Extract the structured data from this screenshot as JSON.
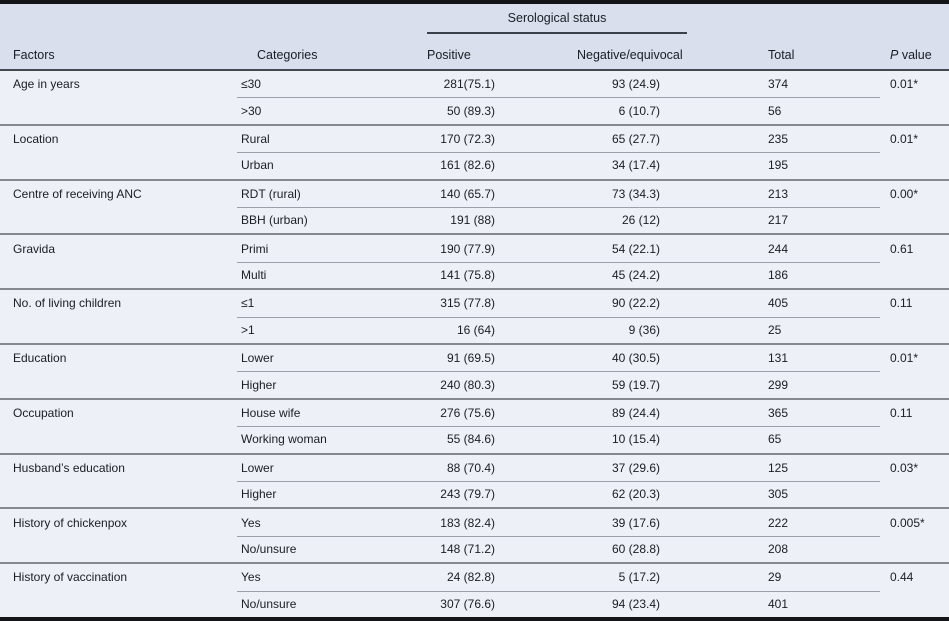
{
  "colors": {
    "pageBg": "#edf0f6",
    "headerBg": "#d9dfec",
    "barColor": "#131417",
    "headerLine": "#44484f",
    "spannerLine": "#3c4048",
    "groupLine": "#84888f",
    "rowLine": "#9aa0aa",
    "textColor": "#1a1d24"
  },
  "table": {
    "spanner": "Serological status",
    "columns": {
      "factors": "Factors",
      "categories": "Categories",
      "positive": "Positive",
      "negative": "Negative/equivocal",
      "total": "Total",
      "p": "P value"
    },
    "groups": [
      {
        "factor": "Age in years",
        "p": "0.01*",
        "rows": [
          {
            "category": "≤30",
            "positive": "281(75.1)",
            "negative": "93 (24.9)",
            "total": "374"
          },
          {
            "category": ">30",
            "positive": "50 (89.3)",
            "negative": "6 (10.7)",
            "total": "56"
          }
        ]
      },
      {
        "factor": "Location",
        "p": "0.01*",
        "rows": [
          {
            "category": "Rural",
            "positive": "170 (72.3)",
            "negative": "65 (27.7)",
            "total": "235"
          },
          {
            "category": "Urban",
            "positive": "161 (82.6)",
            "negative": "34 (17.4)",
            "total": "195"
          }
        ]
      },
      {
        "factor": "Centre of receiving ANC",
        "p": "0.00*",
        "rows": [
          {
            "category": "RDT (rural)",
            "positive": "140 (65.7)",
            "negative": "73 (34.3)",
            "total": "213"
          },
          {
            "category": "BBH (urban)",
            "positive": "191 (88)",
            "negative": "26 (12)",
            "total": "217"
          }
        ]
      },
      {
        "factor": "Gravida",
        "p": "0.61",
        "rows": [
          {
            "category": "Primi",
            "positive": "190 (77.9)",
            "negative": "54 (22.1)",
            "total": "244"
          },
          {
            "category": "Multi",
            "positive": "141 (75.8)",
            "negative": "45 (24.2)",
            "total": "186"
          }
        ]
      },
      {
        "factor": "No. of living children",
        "p": "0.11",
        "rows": [
          {
            "category": "≤1",
            "positive": "315 (77.8)",
            "negative": "90 (22.2)",
            "total": "405"
          },
          {
            "category": ">1",
            "positive": "16 (64)",
            "negative": "9 (36)",
            "total": "25"
          }
        ]
      },
      {
        "factor": "Education",
        "p": "0.01*",
        "rows": [
          {
            "category": "Lower",
            "positive": "91 (69.5)",
            "negative": "40 (30.5)",
            "total": "131"
          },
          {
            "category": "Higher",
            "positive": "240 (80.3)",
            "negative": "59 (19.7)",
            "total": "299"
          }
        ]
      },
      {
        "factor": "Occupation",
        "p": "0.11",
        "rows": [
          {
            "category": "House wife",
            "positive": "276 (75.6)",
            "negative": "89 (24.4)",
            "total": "365"
          },
          {
            "category": "Working woman",
            "positive": "55 (84.6)",
            "negative": "10 (15.4)",
            "total": "65"
          }
        ]
      },
      {
        "factor": "Husband’s education",
        "p": "0.03*",
        "rows": [
          {
            "category": "Lower",
            "positive": "88 (70.4)",
            "negative": "37 (29.6)",
            "total": "125"
          },
          {
            "category": "Higher",
            "positive": "243 (79.7)",
            "negative": "62 (20.3)",
            "total": "305"
          }
        ]
      },
      {
        "factor": "History of chickenpox",
        "p": "0.005*",
        "rows": [
          {
            "category": "Yes",
            "positive": "183 (82.4)",
            "negative": "39 (17.6)",
            "total": "222"
          },
          {
            "category": "No/unsure",
            "positive": "148 (71.2)",
            "negative": "60 (28.8)",
            "total": "208"
          }
        ]
      },
      {
        "factor": "History of vaccination",
        "p": "0.44",
        "rows": [
          {
            "category": "Yes",
            "positive": "24 (82.8)",
            "negative": "5 (17.2)",
            "total": "29"
          },
          {
            "category": "No/unsure",
            "positive": "307 (76.6)",
            "negative": "94 (23.4)",
            "total": "401"
          }
        ]
      }
    ]
  }
}
